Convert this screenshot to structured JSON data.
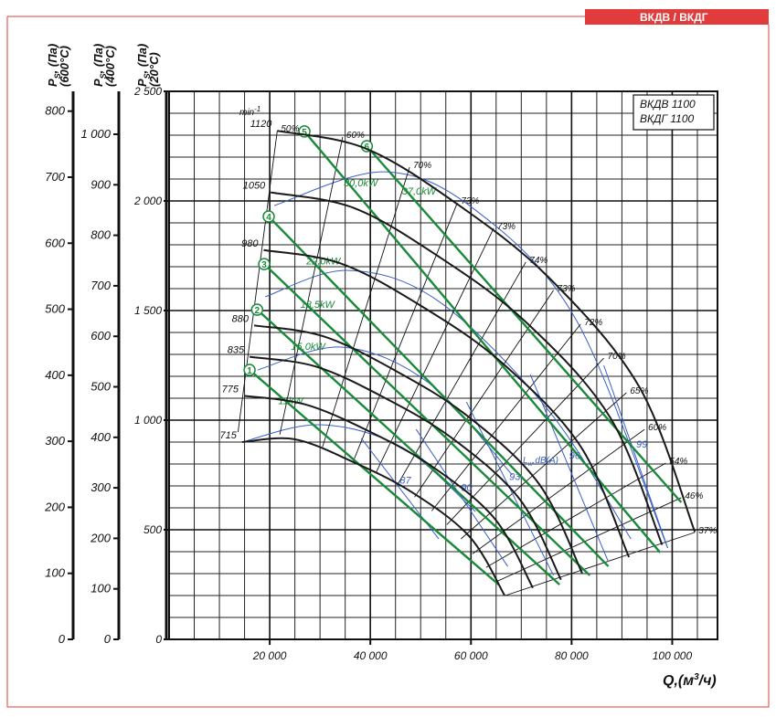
{
  "header": {
    "tag": "ВКДВ / ВКДГ"
  },
  "chart_data": {
    "type": "line",
    "model_labels": [
      "ВКДВ 1100",
      "ВКДГ 1100"
    ],
    "speed_unit": {
      "text": "min",
      "sup": "-1"
    },
    "xlabel": {
      "text": "Q,(м",
      "sup": "3",
      "tail": "/ч)"
    },
    "xlim": [
      0,
      109000
    ],
    "xticks": [
      {
        "value": 20000,
        "label": "20 000"
      },
      {
        "value": 40000,
        "label": "40 000"
      },
      {
        "value": 60000,
        "label": "60 000"
      },
      {
        "value": 80000,
        "label": "80 000"
      },
      {
        "value": 100000,
        "label": "100 000"
      }
    ],
    "ylabel": {
      "symbol": "P",
      "sub": "S",
      "unit": ", (Па)",
      "temp": "(20°C)"
    },
    "ylim": [
      0,
      2500
    ],
    "yticks": [
      0,
      500,
      {
        "value": 1000,
        "label": "1 000"
      },
      {
        "value": 1500,
        "label": "1 500"
      },
      {
        "value": 2000,
        "label": "2 000"
      },
      {
        "value": 2500,
        "label": "2 500"
      }
    ],
    "extra_axes": [
      {
        "symbol": "P",
        "sub": "S",
        "unit": ", (Па)",
        "temp": "(600°C)",
        "ylim": [
          0,
          830
        ],
        "yticks": [
          0,
          100,
          200,
          300,
          400,
          500,
          600,
          700,
          800
        ]
      },
      {
        "symbol": "P",
        "sub": "S",
        "unit": ", (Па)",
        "temp": "(400°C)",
        "ylim": [
          0,
          1085
        ],
        "yticks": [
          0,
          100,
          200,
          300,
          400,
          500,
          600,
          700,
          800,
          900,
          {
            "value": 1000,
            "label": "1 000"
          }
        ]
      }
    ],
    "grid": true,
    "series": [
      {
        "name": "1120",
        "color": "#1a1a1a",
        "x": [
          21500,
          39000,
          57000,
          75500,
          93500,
          104500
        ],
        "values": [
          2320,
          2240,
          1990,
          1650,
          1150,
          490
        ]
      },
      {
        "name": "1050",
        "color": "#1a1a1a",
        "x": [
          20200,
          36600,
          53400,
          70800,
          87700,
          98000
        ],
        "values": [
          2039,
          1969,
          1749,
          1450,
          1011,
          431
        ]
      },
      {
        "name": "980",
        "color": "#1a1a1a",
        "x": [
          18800,
          34100,
          49900,
          66100,
          81800,
          91400
        ],
        "values": [
          1776,
          1715,
          1524,
          1263,
          880,
          375
        ]
      },
      {
        "name": "880",
        "color": "#1a1a1a",
        "x": [
          16900,
          30600,
          44800,
          59300,
          73500,
          82100
        ],
        "values": [
          1432,
          1383,
          1228,
          1019,
          710,
          302
        ]
      },
      {
        "name": "835",
        "color": "#1a1a1a",
        "x": [
          16000,
          29100,
          42500,
          56300,
          69700,
          77900
        ],
        "values": [
          1289,
          1245,
          1106,
          917,
          639,
          272
        ]
      },
      {
        "name": "775",
        "color": "#1a1a1a",
        "x": [
          14900,
          27000,
          39400,
          52200,
          64700,
          72300
        ],
        "values": [
          1111,
          1072,
          953,
          790,
          551,
          235
        ]
      },
      {
        "name": "715",
        "color": "#1a1a1a",
        "x": [
          14500,
          24900,
          36400,
          48200,
          59700,
          66700
        ],
        "values": [
          900,
          913,
          811,
          672,
          469,
          200
        ]
      }
    ],
    "power_lines": [
      {
        "name": "11kW",
        "number": "1",
        "color": "#1a8a3a",
        "x": [
          16000,
          65500
        ],
        "values": [
          1229,
          250
        ]
      },
      {
        "name": "15,0kW",
        "number": "2",
        "color": "#1a8a3a",
        "x": [
          17500,
          77600
        ],
        "values": [
          1504,
          250
        ]
      },
      {
        "name": "18,5kW",
        "number": "3",
        "color": "#1a8a3a",
        "x": [
          18900,
          83600
        ],
        "values": [
          1712,
          292
        ]
      },
      {
        "name": "22,0kW",
        "number": "4",
        "color": "#1a8a3a",
        "x": [
          19800,
          87300
        ],
        "values": [
          1929,
          333
        ]
      },
      {
        "name": "30,0kW",
        "number": "5",
        "color": "#1a8a3a",
        "x": [
          26900,
          97600
        ],
        "values": [
          2317,
          396
        ]
      },
      {
        "name": "37,0kW",
        "number": "6",
        "color": "#1a8a3a",
        "x": [
          39300,
          101800
        ],
        "values": [
          2250,
          625
        ]
      }
    ],
    "efficiency_lines": [
      {
        "name": "50%",
        "x": [
          21500,
          13700
        ],
        "values": [
          2320,
          945
        ]
      },
      {
        "name": "60%",
        "x": [
          34500,
          22000
        ],
        "values": [
          2292,
          934
        ]
      },
      {
        "name": "70%",
        "x": [
          47800,
          30500
        ],
        "values": [
          2154,
          878
        ]
      },
      {
        "name": "73%",
        "x": [
          57300,
          36600
        ],
        "values": [
          1992,
          812
        ]
      },
      {
        "name": "73%",
        "x": [
          64500,
          41200
        ],
        "values": [
          1875,
          764
        ]
      },
      {
        "name": "74%",
        "x": [
          70900,
          45300
        ],
        "values": [
          1721,
          701
        ]
      },
      {
        "name": "73%",
        "x": [
          76400,
          48800
        ],
        "values": [
          1592,
          649
        ]
      },
      {
        "name": "72%",
        "x": [
          81800,
          52200
        ],
        "values": [
          1438,
          586
        ]
      },
      {
        "name": "70%",
        "x": [
          86400,
          55200
        ],
        "values": [
          1283,
          523
        ]
      },
      {
        "name": "65%",
        "x": [
          90900,
          58000
        ],
        "values": [
          1125,
          458
        ]
      },
      {
        "name": "60%",
        "x": [
          94500,
          60300
        ],
        "values": [
          958,
          390
        ]
      },
      {
        "name": "54%",
        "x": [
          98700,
          63000
        ],
        "values": [
          804,
          328
        ]
      },
      {
        "name": "46%",
        "x": [
          101800,
          65000
        ],
        "values": [
          646,
          263
        ]
      },
      {
        "name": "37%",
        "x": [
          104500,
          66700
        ],
        "values": [
          488,
          199
        ]
      }
    ],
    "noise_label": {
      "text": "L",
      "sub": "w",
      "tail": ",dB(A)"
    },
    "noise_lines": [
      {
        "name": "87",
        "color": "#3a5fc8",
        "x": [
          38200,
          53600
        ],
        "values": [
          917,
          458
        ]
      },
      {
        "name": "90",
        "color": "#3a5fc8",
        "x": [
          49100,
          67300
        ],
        "values": [
          958,
          333
        ]
      },
      {
        "name": "93",
        "color": "#3a5fc8",
        "x": [
          59100,
          76400
        ],
        "values": [
          1083,
          292
        ]
      },
      {
        "name": "96",
        "color": "#3a5fc8",
        "x": [
          71800,
          87300
        ],
        "values": [
          1208,
          354
        ]
      },
      {
        "name": "99",
        "color": "#3a5fc8",
        "x": [
          86400,
          99100
        ],
        "values": [
          1250,
          417
        ]
      }
    ],
    "blue_curves": [
      {
        "color": "#3a5fc8",
        "x": [
          14500,
          30000,
          46400,
          60900
        ],
        "values": [
          900,
          979,
          875,
          583
        ]
      },
      {
        "color": "#3a5fc8",
        "x": [
          17600,
          34500,
          51800,
          68200
        ],
        "values": [
          1229,
          1333,
          1167,
          750
        ]
      },
      {
        "color": "#3a5fc8",
        "x": [
          19100,
          35500,
          53600,
          75500,
          91800
        ],
        "values": [
          1563,
          1683,
          1542,
          1042,
          458
        ]
      },
      {
        "color": "#3a5fc8",
        "x": [
          20900,
          42700,
          60900,
          80900,
          99100
        ],
        "values": [
          1979,
          2133,
          1958,
          1458,
          417
        ]
      }
    ]
  }
}
